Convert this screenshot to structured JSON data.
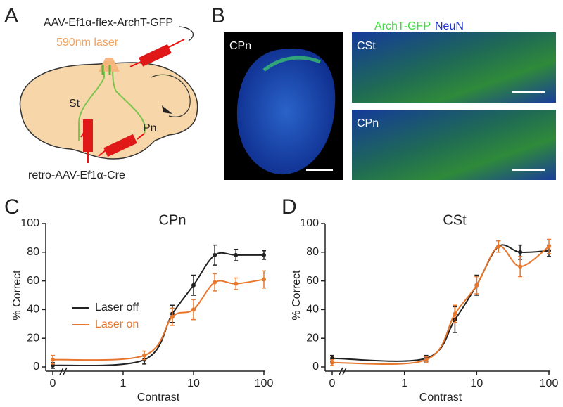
{
  "panel_a": {
    "label": "A",
    "virus_top": "AAV-Ef1α-flex-ArchT-GFP",
    "laser": "590nm laser",
    "st": "St",
    "pn": "Pn",
    "virus_bottom": "retro-AAV-Ef1α-Cre"
  },
  "panel_b": {
    "label": "B",
    "legend_green": "ArchT-GFP",
    "legend_blue": "NeuN",
    "image_labels": [
      "CPn",
      "CSt",
      "CPn"
    ]
  },
  "chart_data": [
    {
      "type": "line",
      "label": "C",
      "title": "CPn",
      "xlabel": "Contrast",
      "ylabel": "% Correct",
      "xscale": "log",
      "x": [
        0,
        2,
        5,
        10,
        20,
        40,
        100
      ],
      "xticks": [
        0,
        1,
        10,
        100
      ],
      "ylim": [
        0,
        100
      ],
      "yticks": [
        0,
        20,
        40,
        60,
        80,
        100
      ],
      "legend": true,
      "series": [
        {
          "name": "Laser off",
          "color": "#222222",
          "values": [
            1,
            5,
            37,
            57,
            78,
            78,
            78
          ],
          "errors": [
            2,
            3,
            6,
            7,
            7,
            4,
            3
          ]
        },
        {
          "name": "Laser on",
          "color": "#e8772e",
          "values": [
            5,
            8,
            35,
            40,
            59,
            58,
            61
          ],
          "errors": [
            3,
            3,
            6,
            7,
            6,
            4,
            6
          ]
        }
      ]
    },
    {
      "type": "line",
      "label": "D",
      "title": "CSt",
      "xlabel": "Contrast",
      "ylabel": "% Correct",
      "xscale": "log",
      "x": [
        0,
        2,
        5,
        10,
        20,
        40,
        100
      ],
      "xticks": [
        0,
        1,
        10,
        100
      ],
      "ylim": [
        0,
        100
      ],
      "yticks": [
        0,
        20,
        40,
        60,
        80,
        100
      ],
      "legend": false,
      "series": [
        {
          "color": "#222222",
          "values": [
            6,
            6,
            33,
            57,
            84,
            80,
            81
          ],
          "errors": [
            2,
            2,
            9,
            7,
            4,
            5,
            4
          ]
        },
        {
          "color": "#e8772e",
          "values": [
            3,
            5,
            37,
            57,
            84,
            70,
            84
          ],
          "errors": [
            2,
            2,
            6,
            6,
            4,
            7,
            5
          ]
        }
      ]
    }
  ]
}
